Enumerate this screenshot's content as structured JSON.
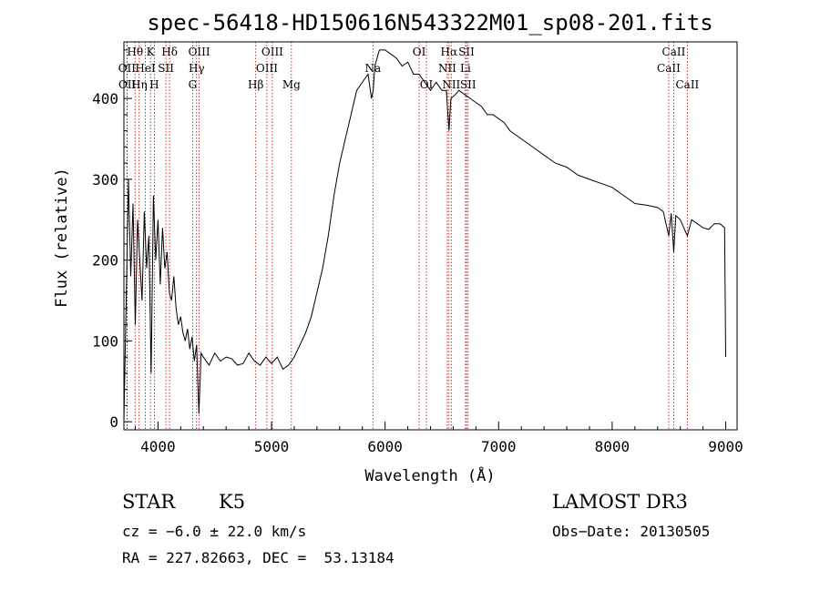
{
  "chart_data": {
    "type": "line",
    "title": "spec-56418-HD150616N543322M01_sp08-201.fits",
    "xlabel": "Wavelength (Å)",
    "ylabel": "Flux (relative)",
    "xlim": [
      3700,
      9100
    ],
    "ylim": [
      -10,
      470
    ],
    "xticks": [
      "4000",
      "5000",
      "6000",
      "7000",
      "8000",
      "9000"
    ],
    "yticks": [
      "0",
      "100",
      "200",
      "300",
      "400"
    ],
    "grid": false,
    "series": [
      {
        "x": [
          3700,
          3720,
          3740,
          3760,
          3780,
          3800,
          3820,
          3840,
          3860,
          3880,
          3900,
          3920,
          3940,
          3960,
          3980,
          4000,
          4020,
          4040,
          4060,
          4080,
          4100,
          4120,
          4140,
          4160,
          4180,
          4200,
          4220,
          4240,
          4260,
          4280,
          4300,
          4320,
          4340,
          4360,
          4380,
          4400,
          4450,
          4500,
          4550,
          4600,
          4650,
          4700,
          4750,
          4800,
          4850,
          4900,
          4950,
          5000,
          5050,
          5100,
          5150,
          5200,
          5250,
          5300,
          5350,
          5400,
          5450,
          5500,
          5550,
          5600,
          5650,
          5700,
          5750,
          5800,
          5850,
          5880,
          5895,
          5910,
          5950,
          6000,
          6050,
          6100,
          6150,
          6200,
          6250,
          6300,
          6350,
          6400,
          6450,
          6500,
          6540,
          6563,
          6580,
          6620,
          6650,
          6700,
          6750,
          6800,
          6850,
          6900,
          6950,
          7000,
          7050,
          7100,
          7200,
          7300,
          7400,
          7500,
          7600,
          7700,
          7800,
          7900,
          8000,
          8100,
          8200,
          8300,
          8400,
          8450,
          8498,
          8520,
          8542,
          8560,
          8600,
          8662,
          8700,
          8750,
          8800,
          8850,
          8900,
          8950,
          8990,
          9000
        ],
        "values": [
          0,
          150,
          300,
          180,
          270,
          120,
          250,
          200,
          150,
          260,
          190,
          230,
          60,
          280,
          200,
          250,
          170,
          240,
          190,
          210,
          160,
          150,
          180,
          140,
          120,
          130,
          110,
          100,
          115,
          90,
          105,
          75,
          95,
          10,
          85,
          80,
          70,
          85,
          75,
          80,
          78,
          70,
          72,
          85,
          75,
          70,
          80,
          72,
          80,
          65,
          70,
          80,
          95,
          110,
          130,
          160,
          190,
          230,
          280,
          320,
          350,
          380,
          410,
          420,
          430,
          400,
          410,
          440,
          460,
          460,
          455,
          450,
          440,
          445,
          430,
          430,
          420,
          410,
          420,
          410,
          410,
          360,
          400,
          405,
          410,
          405,
          400,
          395,
          390,
          380,
          380,
          375,
          370,
          360,
          350,
          340,
          330,
          320,
          315,
          305,
          300,
          295,
          290,
          280,
          270,
          268,
          265,
          260,
          230,
          258,
          210,
          255,
          250,
          230,
          250,
          245,
          240,
          238,
          245,
          245,
          240,
          80
        ]
      }
    ],
    "lines": [
      {
        "label": "Hθ",
        "x": 3798,
        "row": 0
      },
      {
        "label": "K",
        "x": 3934,
        "row": 0
      },
      {
        "label": "Hδ",
        "x": 4102,
        "row": 0
      },
      {
        "label": "OIII",
        "x": 4363,
        "row": 0
      },
      {
        "label": "OIII",
        "x": 5007,
        "row": 0
      },
      {
        "label": "OI",
        "x": 6300,
        "row": 0
      },
      {
        "label": "Hα",
        "x": 6563,
        "row": 0
      },
      {
        "label": "SII",
        "x": 6717,
        "row": 0
      },
      {
        "label": "CaII",
        "x": 8542,
        "row": 0
      },
      {
        "label": "OII",
        "x": 3727,
        "row": 1
      },
      {
        "label": "HeI",
        "x": 3889,
        "row": 1
      },
      {
        "label": "SII",
        "x": 4070,
        "row": 1
      },
      {
        "label": "Hγ",
        "x": 4340,
        "row": 1
      },
      {
        "label": "OIII",
        "x": 4959,
        "row": 1
      },
      {
        "label": "Na",
        "x": 5893,
        "row": 1
      },
      {
        "label": "NII",
        "x": 6548,
        "row": 1
      },
      {
        "label": "Li",
        "x": 6708,
        "row": 1
      },
      {
        "label": "CaII",
        "x": 8498,
        "row": 1
      },
      {
        "label": "OII",
        "x": 3729,
        "row": 2
      },
      {
        "label": "Hη",
        "x": 3835,
        "row": 2
      },
      {
        "label": "H",
        "x": 3968,
        "row": 2
      },
      {
        "label": "G",
        "x": 4305,
        "row": 2
      },
      {
        "label": "Hβ",
        "x": 4861,
        "row": 2
      },
      {
        "label": "Mg",
        "x": 5175,
        "row": 2
      },
      {
        "label": "OI",
        "x": 6364,
        "row": 2
      },
      {
        "label": "NII",
        "x": 6583,
        "row": 2
      },
      {
        "label": "SII",
        "x": 6731,
        "row": 2
      },
      {
        "label": "CaII",
        "x": 8662,
        "row": 2
      }
    ]
  },
  "info": {
    "class_label": "STAR",
    "subclass": "K5",
    "survey": "LAMOST DR3",
    "cz": "cz = −6.0 ± 22.0 km/s",
    "obs_date": "Obs−Date: 20130505",
    "coords": "RA = 227.82663, DEC =  53.13184"
  }
}
